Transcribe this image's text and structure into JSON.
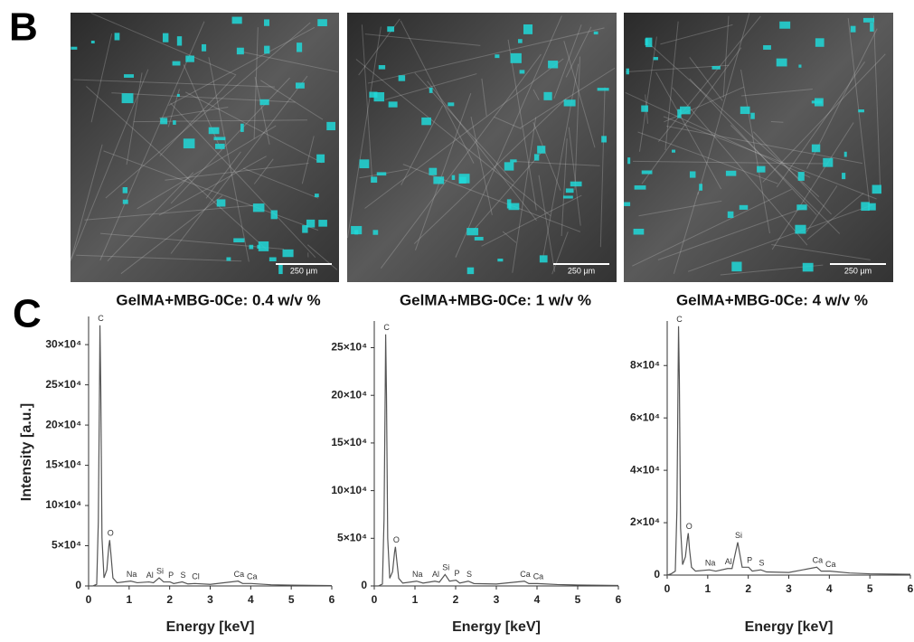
{
  "panel_labels": [
    "B",
    "C"
  ],
  "images": [
    {
      "scale_bar": "250 µm",
      "caption": "GelMA+MBG-0Ce: 0.4 w/v %"
    },
    {
      "scale_bar": "250 µm",
      "caption": "GelMA+MBG-0Ce: 1 w/v %"
    },
    {
      "scale_bar": "250 µm",
      "caption": "GelMA+MBG-0Ce: 4 w/v %"
    }
  ],
  "chart_data": [
    {
      "type": "line",
      "x_label": "Energy [keV]",
      "y_label": "Intensity [a.u.]",
      "color": "#555555",
      "xlim": [
        0,
        6
      ],
      "xticks": [
        0,
        1,
        2,
        3,
        4,
        5,
        6
      ],
      "ylim": [
        0,
        335000
      ],
      "yticks": [
        0,
        {
          "value": 50000,
          "label": "5×10⁴"
        },
        {
          "value": 100000,
          "label": "10×10⁴"
        },
        {
          "value": 150000,
          "label": "15×10⁴"
        },
        {
          "value": 200000,
          "label": "20×10⁴"
        },
        {
          "value": 250000,
          "label": "25×10⁴"
        },
        {
          "value": 300000,
          "label": "30×10⁴"
        }
      ],
      "x": [
        0,
        0.1,
        0.2,
        0.24,
        0.27,
        0.28,
        0.3,
        0.33,
        0.38,
        0.45,
        0.5,
        0.52,
        0.55,
        0.6,
        0.7,
        1.04,
        1.2,
        1.49,
        1.6,
        1.74,
        1.85,
        2.01,
        2.1,
        2.31,
        2.45,
        2.62,
        3.0,
        3.69,
        3.8,
        4.01,
        4.5,
        5,
        6
      ],
      "values": [
        0,
        0,
        2000,
        80000,
        250000,
        324000,
        250000,
        60000,
        10000,
        20000,
        50000,
        57000,
        40000,
        10000,
        4000,
        6000,
        4000,
        5000,
        4000,
        10000,
        5000,
        5000,
        3000,
        5000,
        2500,
        3000,
        2000,
        6000,
        3000,
        3000,
        1500,
        1000,
        500
      ],
      "annotations": [
        {
          "text": "C",
          "x": 0.28,
          "y": 324000
        },
        {
          "text": "O",
          "x": 0.52,
          "y": 57000
        },
        {
          "text": "Na",
          "x": 1.04,
          "y": 6000
        },
        {
          "text": "Al",
          "x": 1.49,
          "y": 5000
        },
        {
          "text": "Si",
          "x": 1.74,
          "y": 10000
        },
        {
          "text": "P",
          "x": 2.01,
          "y": 5000
        },
        {
          "text": "S",
          "x": 2.31,
          "y": 5000
        },
        {
          "text": "Cl",
          "x": 2.62,
          "y": 3000
        },
        {
          "text": "Ca",
          "x": 3.69,
          "y": 6000
        },
        {
          "text": "Ca",
          "x": 4.01,
          "y": 3000
        }
      ]
    },
    {
      "type": "line",
      "x_label": "Energy [keV]",
      "color": "#555555",
      "xlim": [
        0,
        6
      ],
      "xticks": [
        0,
        1,
        2,
        3,
        4,
        5,
        6
      ],
      "ylim": [
        0,
        278000
      ],
      "yticks": [
        0,
        {
          "value": 50000,
          "label": "5×10⁴"
        },
        {
          "value": 100000,
          "label": "10×10⁴"
        },
        {
          "value": 150000,
          "label": "15×10⁴"
        },
        {
          "value": 200000,
          "label": "20×10⁴"
        },
        {
          "value": 250000,
          "label": "25×10⁴"
        }
      ],
      "x": [
        0,
        0.1,
        0.2,
        0.24,
        0.27,
        0.28,
        0.3,
        0.33,
        0.38,
        0.45,
        0.5,
        0.52,
        0.55,
        0.6,
        0.7,
        1.04,
        1.2,
        1.49,
        1.6,
        1.74,
        1.85,
        2.01,
        2.1,
        2.31,
        2.45,
        3.0,
        3.69,
        3.8,
        4.01,
        4.5,
        5,
        6
      ],
      "values": [
        0,
        0,
        2000,
        70000,
        210000,
        264000,
        200000,
        50000,
        8000,
        15000,
        36000,
        41000,
        28000,
        8000,
        3000,
        5000,
        3000,
        5000,
        4000,
        12000,
        5000,
        6000,
        3000,
        5000,
        2500,
        2000,
        5000,
        2500,
        2500,
        1500,
        1000,
        500
      ],
      "annotations": [
        {
          "text": "C",
          "x": 0.28,
          "y": 264000
        },
        {
          "text": "O",
          "x": 0.52,
          "y": 41000
        },
        {
          "text": "Na",
          "x": 1.04,
          "y": 5000
        },
        {
          "text": "Al",
          "x": 1.49,
          "y": 5000
        },
        {
          "text": "Si",
          "x": 1.74,
          "y": 12000
        },
        {
          "text": "P",
          "x": 2.01,
          "y": 6000
        },
        {
          "text": "S",
          "x": 2.31,
          "y": 5000
        },
        {
          "text": "Ca",
          "x": 3.69,
          "y": 5000
        },
        {
          "text": "Ca",
          "x": 4.01,
          "y": 2500
        }
      ]
    },
    {
      "type": "line",
      "x_label": "Energy [keV]",
      "color": "#555555",
      "xlim": [
        0,
        6
      ],
      "xticks": [
        0,
        1,
        2,
        3,
        4,
        5,
        6
      ],
      "ylim": [
        0,
        97000
      ],
      "yticks": [
        0,
        {
          "value": 20000,
          "label": "2×10⁴"
        },
        {
          "value": 40000,
          "label": "4×10⁴"
        },
        {
          "value": 60000,
          "label": "6×10⁴"
        },
        {
          "value": 80000,
          "label": "8×10⁴"
        }
      ],
      "x": [
        0,
        0.1,
        0.2,
        0.24,
        0.27,
        0.28,
        0.3,
        0.33,
        0.38,
        0.45,
        0.5,
        0.52,
        0.55,
        0.6,
        0.7,
        1.04,
        1.2,
        1.49,
        1.6,
        1.74,
        1.85,
        2.01,
        2.1,
        2.31,
        2.45,
        3.0,
        3.69,
        3.8,
        4.01,
        4.5,
        5,
        6
      ],
      "values": [
        0,
        500,
        1500,
        25000,
        78000,
        95000,
        75000,
        18000,
        4000,
        7000,
        14000,
        16000,
        10000,
        3000,
        1500,
        2000,
        1500,
        2500,
        2500,
        12500,
        3000,
        3000,
        1500,
        2000,
        1200,
        1000,
        3000,
        1500,
        1500,
        800,
        500,
        300
      ],
      "annotations": [
        {
          "text": "C",
          "x": 0.28,
          "y": 95000
        },
        {
          "text": "O",
          "x": 0.52,
          "y": 16000
        },
        {
          "text": "Na",
          "x": 1.04,
          "y": 2000
        },
        {
          "text": "Al",
          "x": 1.49,
          "y": 2500
        },
        {
          "text": "Si",
          "x": 1.74,
          "y": 12500
        },
        {
          "text": "P",
          "x": 2.01,
          "y": 3000
        },
        {
          "text": "S",
          "x": 2.31,
          "y": 2000
        },
        {
          "text": "Ca",
          "x": 3.69,
          "y": 3000
        },
        {
          "text": "Ca",
          "x": 4.01,
          "y": 1500
        }
      ]
    }
  ]
}
